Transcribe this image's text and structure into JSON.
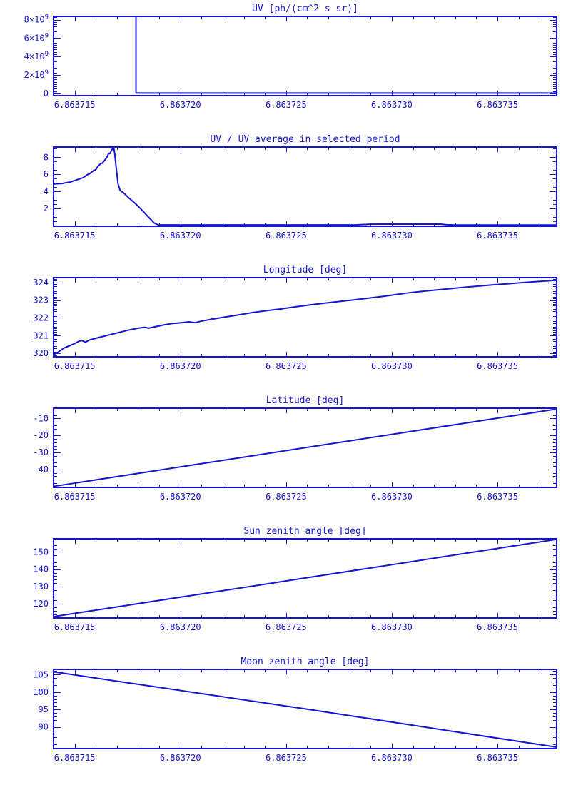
{
  "colors": {
    "accent": "#1414d2",
    "background": "#ffffff"
  },
  "page_title": "Six stacked IDL-style line plots",
  "chart_data": [
    {
      "type": "line",
      "title": "UV [ph/(cm^2 s sr)]",
      "xlabel": "",
      "ylabel": "",
      "x_range": [
        6.863714,
        6.8637378
      ],
      "x_major_ticks": [
        {
          "v": 6.863715,
          "label": "6.863715"
        },
        {
          "v": 6.86372,
          "label": "6.863720"
        },
        {
          "v": 6.863725,
          "label": "6.863725"
        },
        {
          "v": 6.86373,
          "label": "6.863730"
        },
        {
          "v": 6.863735,
          "label": "6.863735"
        }
      ],
      "x_minor_step": 1e-06,
      "y_range": [
        -250000000,
        8350000000
      ],
      "y_major_ticks": [
        {
          "v": 0,
          "label": "0"
        },
        {
          "v": 2000000000,
          "label": "2×10^9"
        },
        {
          "v": 4000000000,
          "label": "4×10^9"
        },
        {
          "v": 6000000000,
          "label": "6×10^9"
        },
        {
          "v": 8000000000,
          "label": "8×10^9"
        }
      ],
      "y_minor_step": 250000000,
      "points": [
        [
          6.863714,
          9000000000
        ],
        [
          6.8637179,
          9000000000
        ],
        [
          6.8637179,
          30000000
        ],
        [
          6.8637378,
          30000000
        ]
      ]
    },
    {
      "type": "line",
      "title": "UV / UV average in selected period",
      "xlabel": "",
      "ylabel": "",
      "x_range": [
        6.863714,
        6.8637378
      ],
      "x_major_ticks": [
        {
          "v": 6.863715,
          "label": "6.863715"
        },
        {
          "v": 6.86372,
          "label": "6.863720"
        },
        {
          "v": 6.863725,
          "label": "6.863725"
        },
        {
          "v": 6.86373,
          "label": "6.863730"
        },
        {
          "v": 6.863735,
          "label": "6.863735"
        }
      ],
      "x_minor_step": 1e-06,
      "y_range": [
        -0.1,
        9.2
      ],
      "y_major_ticks": [
        {
          "v": 2,
          "label": "2"
        },
        {
          "v": 4,
          "label": "4"
        },
        {
          "v": 6,
          "label": "6"
        },
        {
          "v": 8,
          "label": "8"
        }
      ],
      "y_minor_step": 0.5,
      "points": [
        [
          6.863714,
          4.85
        ],
        [
          6.8637144,
          4.92
        ],
        [
          6.8637148,
          5.1
        ],
        [
          6.8637151,
          5.35
        ],
        [
          6.8637154,
          5.6
        ],
        [
          6.8637156,
          5.95
        ],
        [
          6.8637157,
          6.05
        ],
        [
          6.8637159,
          6.45
        ],
        [
          6.863716,
          6.55
        ],
        [
          6.8637161,
          6.95
        ],
        [
          6.86371625,
          7.3
        ],
        [
          6.8637163,
          7.28
        ],
        [
          6.86371645,
          7.75
        ],
        [
          6.86371655,
          8.1
        ],
        [
          6.8637166,
          8.45
        ],
        [
          6.86371666,
          8.42
        ],
        [
          6.86371672,
          8.7
        ],
        [
          6.86371678,
          8.95
        ],
        [
          6.86371685,
          9.1
        ],
        [
          6.8637169,
          8.3
        ],
        [
          6.86371698,
          6.4
        ],
        [
          6.86371705,
          4.9
        ],
        [
          6.86371715,
          4.1
        ],
        [
          6.8637173,
          3.85
        ],
        [
          6.8637176,
          3.15
        ],
        [
          6.8637179,
          2.5
        ],
        [
          6.8637182,
          1.75
        ],
        [
          6.8637185,
          0.95
        ],
        [
          6.86371875,
          0.3
        ],
        [
          6.86371895,
          0.06
        ],
        [
          6.8637283,
          0.06
        ],
        [
          6.8637286,
          0.1
        ],
        [
          6.863729,
          0.14
        ],
        [
          6.8637295,
          0.15
        ],
        [
          6.8637323,
          0.15
        ],
        [
          6.8637326,
          0.08
        ],
        [
          6.863733,
          0.05
        ],
        [
          6.8637378,
          0.05
        ]
      ]
    },
    {
      "type": "line",
      "title": "Longitude [deg]",
      "xlabel": "",
      "ylabel": "",
      "x_range": [
        6.863714,
        6.8637378
      ],
      "x_major_ticks": [
        {
          "v": 6.863715,
          "label": "6.863715"
        },
        {
          "v": 6.86372,
          "label": "6.863720"
        },
        {
          "v": 6.863725,
          "label": "6.863725"
        },
        {
          "v": 6.86373,
          "label": "6.863730"
        },
        {
          "v": 6.863735,
          "label": "6.863735"
        }
      ],
      "x_minor_step": 1e-06,
      "y_range": [
        319.8,
        324.28
      ],
      "y_major_ticks": [
        {
          "v": 320,
          "label": "320"
        },
        {
          "v": 321,
          "label": "321"
        },
        {
          "v": 322,
          "label": "322"
        },
        {
          "v": 323,
          "label": "323"
        },
        {
          "v": 324,
          "label": "324"
        }
      ],
      "y_minor_step": 0.1,
      "points": [
        [
          6.863714,
          319.92
        ],
        [
          6.8637142,
          320.05
        ],
        [
          6.8637145,
          320.3
        ],
        [
          6.8637148,
          320.45
        ],
        [
          6.863715,
          320.55
        ],
        [
          6.8637152,
          320.68
        ],
        [
          6.86371535,
          320.72
        ],
        [
          6.8637155,
          320.63
        ],
        [
          6.8637157,
          320.75
        ],
        [
          6.863716,
          320.85
        ],
        [
          6.8637165,
          321.0
        ],
        [
          6.863717,
          321.15
        ],
        [
          6.8637175,
          321.3
        ],
        [
          6.863718,
          321.42
        ],
        [
          6.8637183,
          321.47
        ],
        [
          6.8637185,
          321.42
        ],
        [
          6.8637188,
          321.5
        ],
        [
          6.8637192,
          321.6
        ],
        [
          6.8637196,
          321.68
        ],
        [
          6.86372,
          321.72
        ],
        [
          6.8637204,
          321.78
        ],
        [
          6.8637207,
          321.73
        ],
        [
          6.863721,
          321.82
        ],
        [
          6.8637215,
          321.93
        ],
        [
          6.863722,
          322.03
        ],
        [
          6.8637225,
          322.12
        ],
        [
          6.863723,
          322.22
        ],
        [
          6.8637235,
          322.32
        ],
        [
          6.863724,
          322.4
        ],
        [
          6.8637247,
          322.5
        ],
        [
          6.8637254,
          322.62
        ],
        [
          6.8637261,
          322.73
        ],
        [
          6.8637268,
          322.83
        ],
        [
          6.8637275,
          322.93
        ],
        [
          6.8637282,
          323.02
        ],
        [
          6.8637289,
          323.12
        ],
        [
          6.8637296,
          323.22
        ],
        [
          6.8637302,
          323.32
        ],
        [
          6.8637308,
          323.42
        ],
        [
          6.8637314,
          323.5
        ],
        [
          6.863732,
          323.57
        ],
        [
          6.8637327,
          323.65
        ],
        [
          6.8637334,
          323.73
        ],
        [
          6.8637341,
          323.8
        ],
        [
          6.8637348,
          323.87
        ],
        [
          6.8637355,
          323.93
        ],
        [
          6.8637362,
          324.0
        ],
        [
          6.8637369,
          324.06
        ],
        [
          6.8637374,
          324.1
        ],
        [
          6.8637378,
          324.13
        ]
      ]
    },
    {
      "type": "line",
      "title": "Latitude [deg]",
      "xlabel": "",
      "ylabel": "",
      "x_range": [
        6.863714,
        6.8637378
      ],
      "x_major_ticks": [
        {
          "v": 6.863715,
          "label": "6.863715"
        },
        {
          "v": 6.86372,
          "label": "6.863720"
        },
        {
          "v": 6.863725,
          "label": "6.863725"
        },
        {
          "v": 6.86373,
          "label": "6.863730"
        },
        {
          "v": 6.863735,
          "label": "6.863735"
        }
      ],
      "x_minor_step": 1e-06,
      "y_range": [
        -50.5,
        -4.0
      ],
      "y_major_ticks": [
        {
          "v": -40,
          "label": "-40"
        },
        {
          "v": -30,
          "label": "-30"
        },
        {
          "v": -20,
          "label": "-20"
        },
        {
          "v": -10,
          "label": "-10"
        }
      ],
      "y_minor_step": 2,
      "points": [
        [
          6.863714,
          -49.9
        ],
        [
          6.863726,
          -27.0
        ],
        [
          6.8637378,
          -4.5
        ]
      ]
    },
    {
      "type": "line",
      "title": "Sun zenith angle [deg]",
      "xlabel": "",
      "ylabel": "",
      "x_range": [
        6.863714,
        6.8637378
      ],
      "x_major_ticks": [
        {
          "v": 6.863715,
          "label": "6.863715"
        },
        {
          "v": 6.86372,
          "label": "6.863720"
        },
        {
          "v": 6.863725,
          "label": "6.863725"
        },
        {
          "v": 6.86373,
          "label": "6.863730"
        },
        {
          "v": 6.863735,
          "label": "6.863735"
        }
      ],
      "x_minor_step": 1e-06,
      "y_range": [
        111.8,
        157.6
      ],
      "y_major_ticks": [
        {
          "v": 120,
          "label": "120"
        },
        {
          "v": 130,
          "label": "130"
        },
        {
          "v": 140,
          "label": "140"
        },
        {
          "v": 150,
          "label": "150"
        }
      ],
      "y_minor_step": 2,
      "points": [
        [
          6.863714,
          112.6
        ],
        [
          6.863726,
          135.1
        ],
        [
          6.8637378,
          157.3
        ]
      ]
    },
    {
      "type": "line",
      "title": "Moon zenith angle [deg]",
      "xlabel": "",
      "ylabel": "",
      "x_range": [
        6.863714,
        6.8637378
      ],
      "x_major_ticks": [
        {
          "v": 6.863715,
          "label": "6.863715"
        },
        {
          "v": 6.86372,
          "label": "6.863720"
        },
        {
          "v": 6.863725,
          "label": "6.863725"
        },
        {
          "v": 6.86373,
          "label": "6.863730"
        },
        {
          "v": 6.863735,
          "label": "6.863735"
        }
      ],
      "x_minor_step": 1e-06,
      "y_range": [
        83.8,
        106.5
      ],
      "y_major_ticks": [
        {
          "v": 90,
          "label": "90"
        },
        {
          "v": 95,
          "label": "95"
        },
        {
          "v": 100,
          "label": "100"
        },
        {
          "v": 105,
          "label": "105"
        }
      ],
      "y_minor_step": 1,
      "points": [
        [
          6.863714,
          105.8
        ],
        [
          6.863726,
          95.1
        ],
        [
          6.8637378,
          84.2
        ]
      ]
    }
  ]
}
